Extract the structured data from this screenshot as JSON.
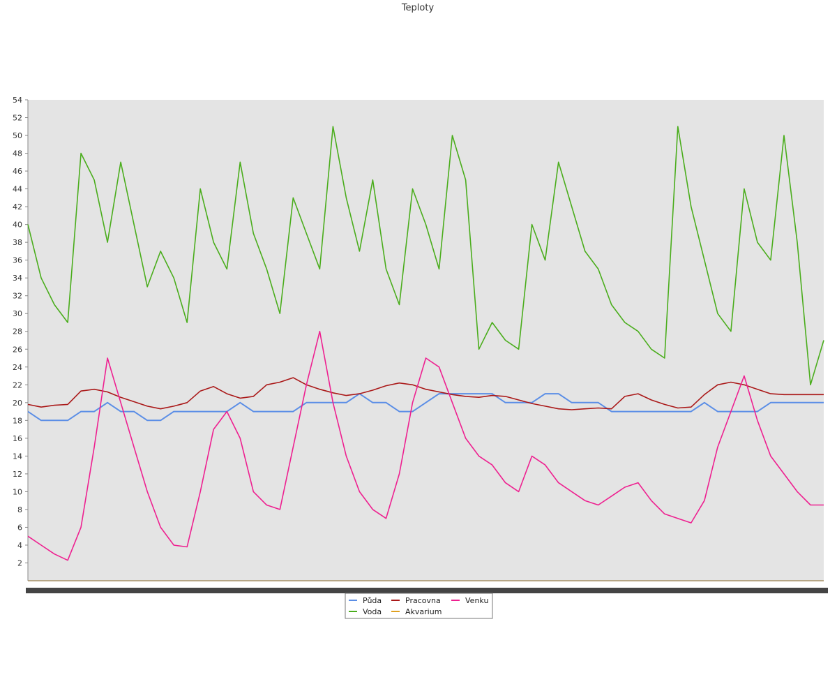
{
  "chart_data": {
    "type": "line",
    "title": "Teploty",
    "xlabel": "",
    "ylabel": "",
    "ylim": [
      0,
      54
    ],
    "yticks": [
      2,
      4,
      6,
      8,
      10,
      12,
      14,
      16,
      18,
      20,
      22,
      24,
      26,
      28,
      30,
      32,
      34,
      36,
      38,
      40,
      42,
      44,
      46,
      48,
      50,
      52,
      54
    ],
    "x": [
      0,
      1,
      2,
      3,
      4,
      5,
      6,
      7,
      8,
      9,
      10,
      11,
      12,
      13,
      14,
      15,
      16,
      17,
      18,
      19,
      20,
      21,
      22,
      23,
      24,
      25,
      26,
      27,
      28,
      29,
      30,
      31,
      32,
      33,
      34,
      35,
      36,
      37,
      38,
      39,
      40,
      41,
      42,
      43,
      44,
      45,
      46,
      47,
      48,
      49,
      50,
      51,
      52,
      53,
      54,
      55,
      56,
      57,
      58,
      59,
      60
    ],
    "grid": false,
    "legend_position": "bottom",
    "series": [
      {
        "name": "Půda",
        "color": "#5b8ee6",
        "values": [
          19,
          18,
          18,
          18,
          19,
          19,
          20,
          19,
          19,
          18,
          18,
          19,
          19,
          19,
          19,
          19,
          20,
          19,
          19,
          19,
          19,
          20,
          20,
          20,
          20,
          21,
          20,
          20,
          19,
          19,
          20,
          21,
          21,
          21,
          21,
          21,
          20,
          20,
          20,
          21,
          21,
          20,
          20,
          20,
          19,
          19,
          19,
          19,
          19,
          19,
          19,
          20,
          19,
          19,
          19,
          19,
          20,
          20,
          20,
          20,
          20
        ]
      },
      {
        "name": "Voda",
        "color": "#4aad1c",
        "values": [
          40,
          34,
          31,
          29,
          48,
          45,
          38,
          47,
          40,
          33,
          37,
          34,
          29,
          44,
          38,
          35,
          47,
          39,
          35,
          30,
          43,
          39,
          35,
          51,
          43,
          37,
          45,
          35,
          31,
          44,
          40,
          35,
          50,
          45,
          26,
          29,
          27,
          26,
          40,
          36,
          47,
          42,
          37,
          35,
          31,
          29,
          28,
          26,
          25,
          51,
          42,
          36,
          30,
          28,
          44,
          38,
          36,
          50,
          38,
          22,
          27
        ]
      },
      {
        "name": "Pracovna",
        "color": "#aa1818",
        "values": [
          19.8,
          19.5,
          19.7,
          19.8,
          21.3,
          21.5,
          21.2,
          20.6,
          20.1,
          19.6,
          19.3,
          19.6,
          20.0,
          21.3,
          21.8,
          21.0,
          20.5,
          20.7,
          22.0,
          22.3,
          22.8,
          22.0,
          21.5,
          21.1,
          20.8,
          21.0,
          21.4,
          21.9,
          22.2,
          22.0,
          21.5,
          21.2,
          20.9,
          20.7,
          20.6,
          20.8,
          20.7,
          20.3,
          19.9,
          19.6,
          19.3,
          19.2,
          19.3,
          19.4,
          19.3,
          20.7,
          21.0,
          20.3,
          19.8,
          19.4,
          19.5,
          20.9,
          22.0,
          22.3,
          22.0,
          21.5,
          21.0,
          20.9,
          20.9,
          20.9,
          20.9
        ]
      },
      {
        "name": "Akvarium",
        "color": "#e0a020",
        "values": [
          0,
          0,
          0,
          0,
          0,
          0,
          0,
          0,
          0,
          0,
          0,
          0,
          0,
          0,
          0,
          0,
          0,
          0,
          0,
          0,
          0,
          0,
          0,
          0,
          0,
          0,
          0,
          0,
          0,
          0,
          0,
          0,
          0,
          0,
          0,
          0,
          0,
          0,
          0,
          0,
          0,
          0,
          0,
          0,
          0,
          0,
          0,
          0,
          0,
          0,
          0,
          0,
          0,
          0,
          0,
          0,
          0,
          0,
          0,
          0,
          0
        ]
      },
      {
        "name": "Venku",
        "color": "#ee2090",
        "values": [
          5,
          4,
          3,
          2.3,
          6,
          15,
          25,
          20,
          15,
          10,
          6,
          4,
          3.8,
          10,
          17,
          19,
          16,
          10,
          8.5,
          8,
          15,
          22,
          28,
          20,
          14,
          10,
          8,
          7,
          12,
          20,
          25,
          24,
          20,
          16,
          14,
          13,
          11,
          10,
          14,
          13,
          11,
          10,
          9,
          8.5,
          9.5,
          10.5,
          11,
          9,
          7.5,
          7,
          6.5,
          9,
          15,
          19,
          23,
          18,
          14,
          12,
          10,
          8.5,
          8.5
        ]
      }
    ]
  }
}
